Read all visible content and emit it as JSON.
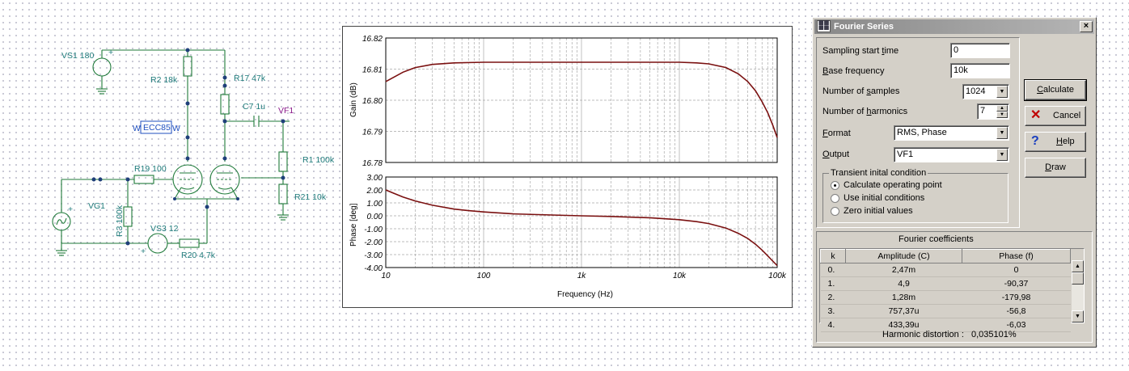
{
  "schematic": {
    "labels": {
      "vs1": "VS1 180",
      "r2": "R2 18k",
      "r17": "R17 47k",
      "c7": "C7 1u",
      "vf1": "VF1",
      "ecc85": "ECC85",
      "r1": "R1 100k",
      "r19": "R19 100",
      "vg1": "VG1",
      "r3": "R3 100k",
      "vs3": "VS3 12",
      "r21": "R21 10k",
      "r20": "R20 4,7k",
      "plus": "+"
    }
  },
  "plot": {
    "gain_ylabel": "Gain (dB)",
    "phase_ylabel": "Phase [deg]",
    "xlabel": "Frequency (Hz)",
    "gain_ticks": [
      "16.82",
      "16.81",
      "16.80",
      "16.79",
      "16.78"
    ],
    "phase_ticks": [
      "3.00",
      "2.00",
      "1.00",
      "0.00",
      "-1.00",
      "-2.00",
      "-3.00",
      "-4.00"
    ],
    "x_ticks": [
      "10",
      "100",
      "1k",
      "10k",
      "100k"
    ]
  },
  "chart_data": [
    {
      "type": "line",
      "title": "",
      "xlabel": "Frequency (Hz)",
      "ylabel": "Gain (dB)",
      "xscale": "log",
      "xlim": [
        10,
        100000
      ],
      "ylim": [
        16.78,
        16.82
      ],
      "grid": true,
      "series": [
        {
          "color": "#7a1010",
          "x": [
            10,
            15,
            20,
            30,
            50,
            100,
            200,
            500,
            1000,
            2000,
            5000,
            10000,
            15000,
            20000,
            30000,
            40000,
            50000,
            60000,
            70000,
            80000,
            90000,
            100000
          ],
          "y": [
            16.806,
            16.809,
            16.8105,
            16.8115,
            16.812,
            16.8122,
            16.8122,
            16.8122,
            16.8122,
            16.8122,
            16.8122,
            16.8122,
            16.812,
            16.8117,
            16.8105,
            16.8085,
            16.806,
            16.803,
            16.7995,
            16.796,
            16.792,
            16.788
          ]
        }
      ]
    },
    {
      "type": "line",
      "title": "",
      "xlabel": "Frequency (Hz)",
      "ylabel": "Phase [deg]",
      "xscale": "log",
      "xlim": [
        10,
        100000
      ],
      "ylim": [
        -4.0,
        3.0
      ],
      "grid": true,
      "series": [
        {
          "color": "#7a1010",
          "x": [
            10,
            12,
            15,
            20,
            30,
            50,
            70,
            100,
            200,
            500,
            1000,
            2000,
            5000,
            10000,
            15000,
            20000,
            30000,
            40000,
            50000,
            60000,
            70000,
            80000,
            90000,
            100000
          ],
          "y": [
            2.0,
            1.75,
            1.45,
            1.15,
            0.82,
            0.52,
            0.4,
            0.3,
            0.15,
            0.06,
            0.0,
            -0.05,
            -0.15,
            -0.3,
            -0.45,
            -0.6,
            -0.95,
            -1.35,
            -1.75,
            -2.2,
            -2.65,
            -3.1,
            -3.5,
            -3.85
          ]
        }
      ]
    }
  ],
  "dialog": {
    "title": "Fourier Series",
    "close": "×",
    "sampling_start_label_a": "Sampling start ",
    "sampling_start_label_u": "t",
    "sampling_start_label_b": "ime",
    "sampling_start_value": "0",
    "base_freq_label_u": "B",
    "base_freq_label_b": "ase frequency",
    "base_freq_value": "10k",
    "num_samples_label_a": "Number of ",
    "num_samples_label_u": "s",
    "num_samples_label_b": "amples",
    "num_samples_value": "1024",
    "num_harmonics_label_a": "Number of ",
    "num_harmonics_label_u": "h",
    "num_harmonics_label_b": "armonics",
    "num_harmonics_value": "7",
    "format_label_u": "F",
    "format_label_b": "ormat",
    "format_value": "RMS, Phase",
    "output_label_u": "O",
    "output_label_b": "utput",
    "output_value": "VF1",
    "transient_title": "Transient inital condition",
    "radio_options": [
      "Calculate operating point",
      "Use initial conditions",
      "Zero initial values"
    ],
    "selected_radio": 0,
    "btn_calculate_u": "C",
    "btn_calculate_b": "alculate",
    "btn_cancel": "Cancel",
    "btn_help_u": "H",
    "btn_help_b": "elp",
    "btn_draw_u": "D",
    "btn_draw_b": "raw",
    "coeff_title": "Fourier coefficients",
    "columns": [
      "k",
      "Amplitude (C)",
      "Phase (f)"
    ],
    "rows": [
      {
        "k": "0.",
        "amp": "2,47m",
        "phase": "0"
      },
      {
        "k": "1.",
        "amp": "4,9",
        "phase": "-90,37"
      },
      {
        "k": "2.",
        "amp": "1,28m",
        "phase": "-179,98"
      },
      {
        "k": "3.",
        "amp": "757,37u",
        "phase": "-56,8"
      },
      {
        "k": "4.",
        "amp": "433,39u",
        "phase": "-6,03"
      }
    ],
    "hd_label": "Harmonic distortion :",
    "hd_value": "0,035101%"
  }
}
